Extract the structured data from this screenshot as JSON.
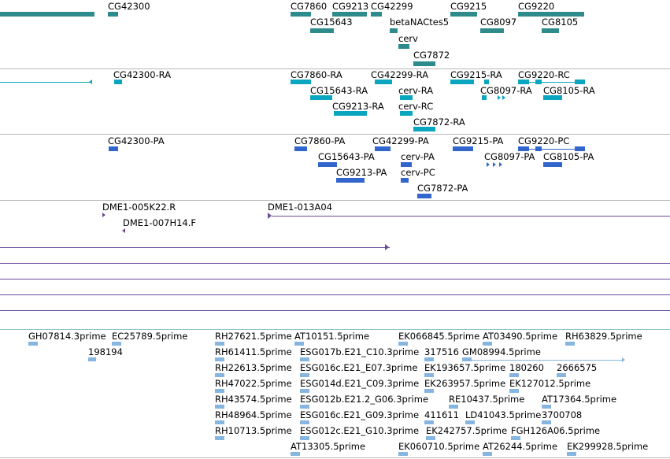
{
  "colors": {
    "gene": "#2e8b8b",
    "transcript": "#0aa6bf",
    "protein": "#3366cc",
    "clone": "#6a4c9c",
    "est": "#86b6e0",
    "separator": "#b8b8b8",
    "est_separator": "#8ec5cc"
  },
  "tracks": {
    "genes": {
      "labels": [
        "CG42300",
        "CG7860",
        "CG9213",
        "CG42299",
        "CG9215",
        "CG9220",
        "CG15643",
        "betaNACtes5",
        "CG8097",
        "CG8105",
        "cerv",
        "CG7872"
      ]
    },
    "transcripts": {
      "labels": [
        "CG42300-RA",
        "CG7860-RA",
        "CG42299-RA",
        "CG9215-RA",
        "CG9220-RC",
        "CG15643-RA",
        "cerv-RA",
        "CG8097-RA",
        "CG8105-RA",
        "CG9213-RA",
        "cerv-RC",
        "CG7872-RA"
      ]
    },
    "proteins": {
      "labels": [
        "CG42300-PA",
        "CG7860-PA",
        "CG42299-PA",
        "CG9215-PA",
        "CG9220-PC",
        "CG15643-PA",
        "cerv-PA",
        "CG8097-PA",
        "CG8105-PA",
        "CG9213-PA",
        "cerv-PC",
        "CG7872-PA"
      ]
    },
    "clones": {
      "labels": [
        "DME1-005K22.R",
        "DME1-013A04",
        "DME1-007H14.F"
      ]
    },
    "ests": {
      "labels": [
        "GH07814.3prime",
        "EC25789.5prime",
        "RH27621.5prime",
        "AT10151.5prime",
        "EK066845.5prime",
        "AT03490.5prime",
        "RH63829.5prime",
        "198194",
        "RH61411.5prime",
        "ESG017b.E21_C10.3prime",
        "317516",
        "GM08994.5prime",
        "RH22613.5prime",
        "ESG016c.E21_E07.3prime",
        "EK193657.5prime",
        "180260",
        "2666575",
        "RH47022.5prime",
        "ESG014d.E21_C09.3prime",
        "EK263957.5prime",
        "EK127012.5prime",
        "RH43574.5prime",
        "ESG012b.E21.2_G06.3prime",
        "RE10437.5prime",
        "AT17364.5prime",
        "RH48964.5prime",
        "ESG016c.E21_G09.3prime",
        "411611",
        "LD41043.5prime",
        "3700708",
        "RH10713.5prime",
        "ESG012c.E21_G10.3prime",
        "EK242757.5prime",
        "FGH126A06.5prime",
        "AT13305.5prime",
        "EK060710.5prime",
        "AT26244.5prime",
        "EK299928.5prime"
      ]
    }
  }
}
